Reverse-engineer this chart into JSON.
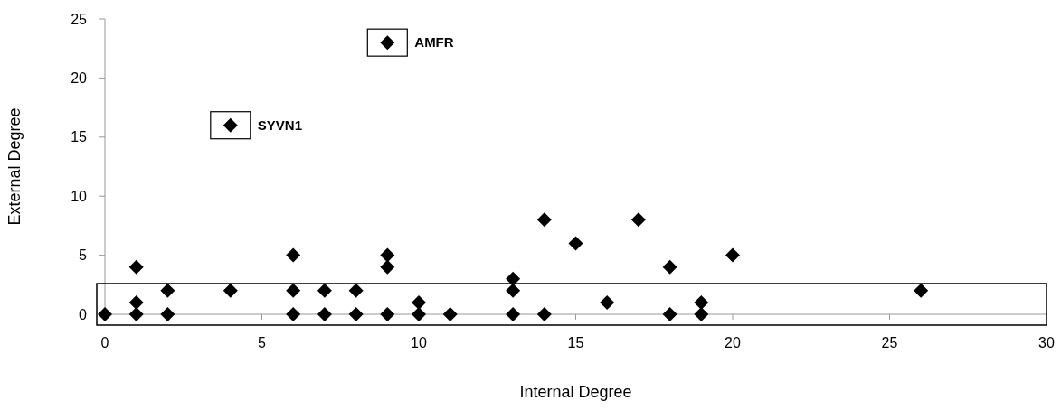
{
  "chart_data": {
    "type": "scatter",
    "xlabel": "Internal Degree",
    "ylabel": "External Degree",
    "x": [
      0,
      1,
      1,
      1,
      2,
      2,
      4,
      6,
      6,
      6,
      7,
      7,
      8,
      8,
      9,
      9,
      9,
      10,
      10,
      11,
      13,
      13,
      13,
      14,
      14,
      15,
      16,
      17,
      18,
      18,
      19,
      19,
      20,
      26,
      9,
      4
    ],
    "values": [
      0,
      4,
      1,
      0,
      2,
      0,
      2,
      5,
      2,
      0,
      2,
      0,
      2,
      0,
      5,
      4,
      0,
      1,
      0,
      0,
      3,
      2,
      0,
      8,
      0,
      6,
      1,
      8,
      4,
      0,
      1,
      0,
      5,
      2,
      23,
      16
    ],
    "color": "#000000",
    "marker": "diamond",
    "xlim": [
      0,
      30
    ],
    "xticks": [
      0,
      5,
      10,
      15,
      20,
      25,
      30
    ],
    "ylim": [
      0,
      25
    ],
    "yticks": [
      0,
      5,
      10,
      15,
      20,
      25
    ],
    "annotations": [
      {
        "text": "AMFR",
        "x": 9,
        "y": 23
      },
      {
        "text": "SYVN1",
        "x": 4,
        "y": 16
      }
    ]
  }
}
